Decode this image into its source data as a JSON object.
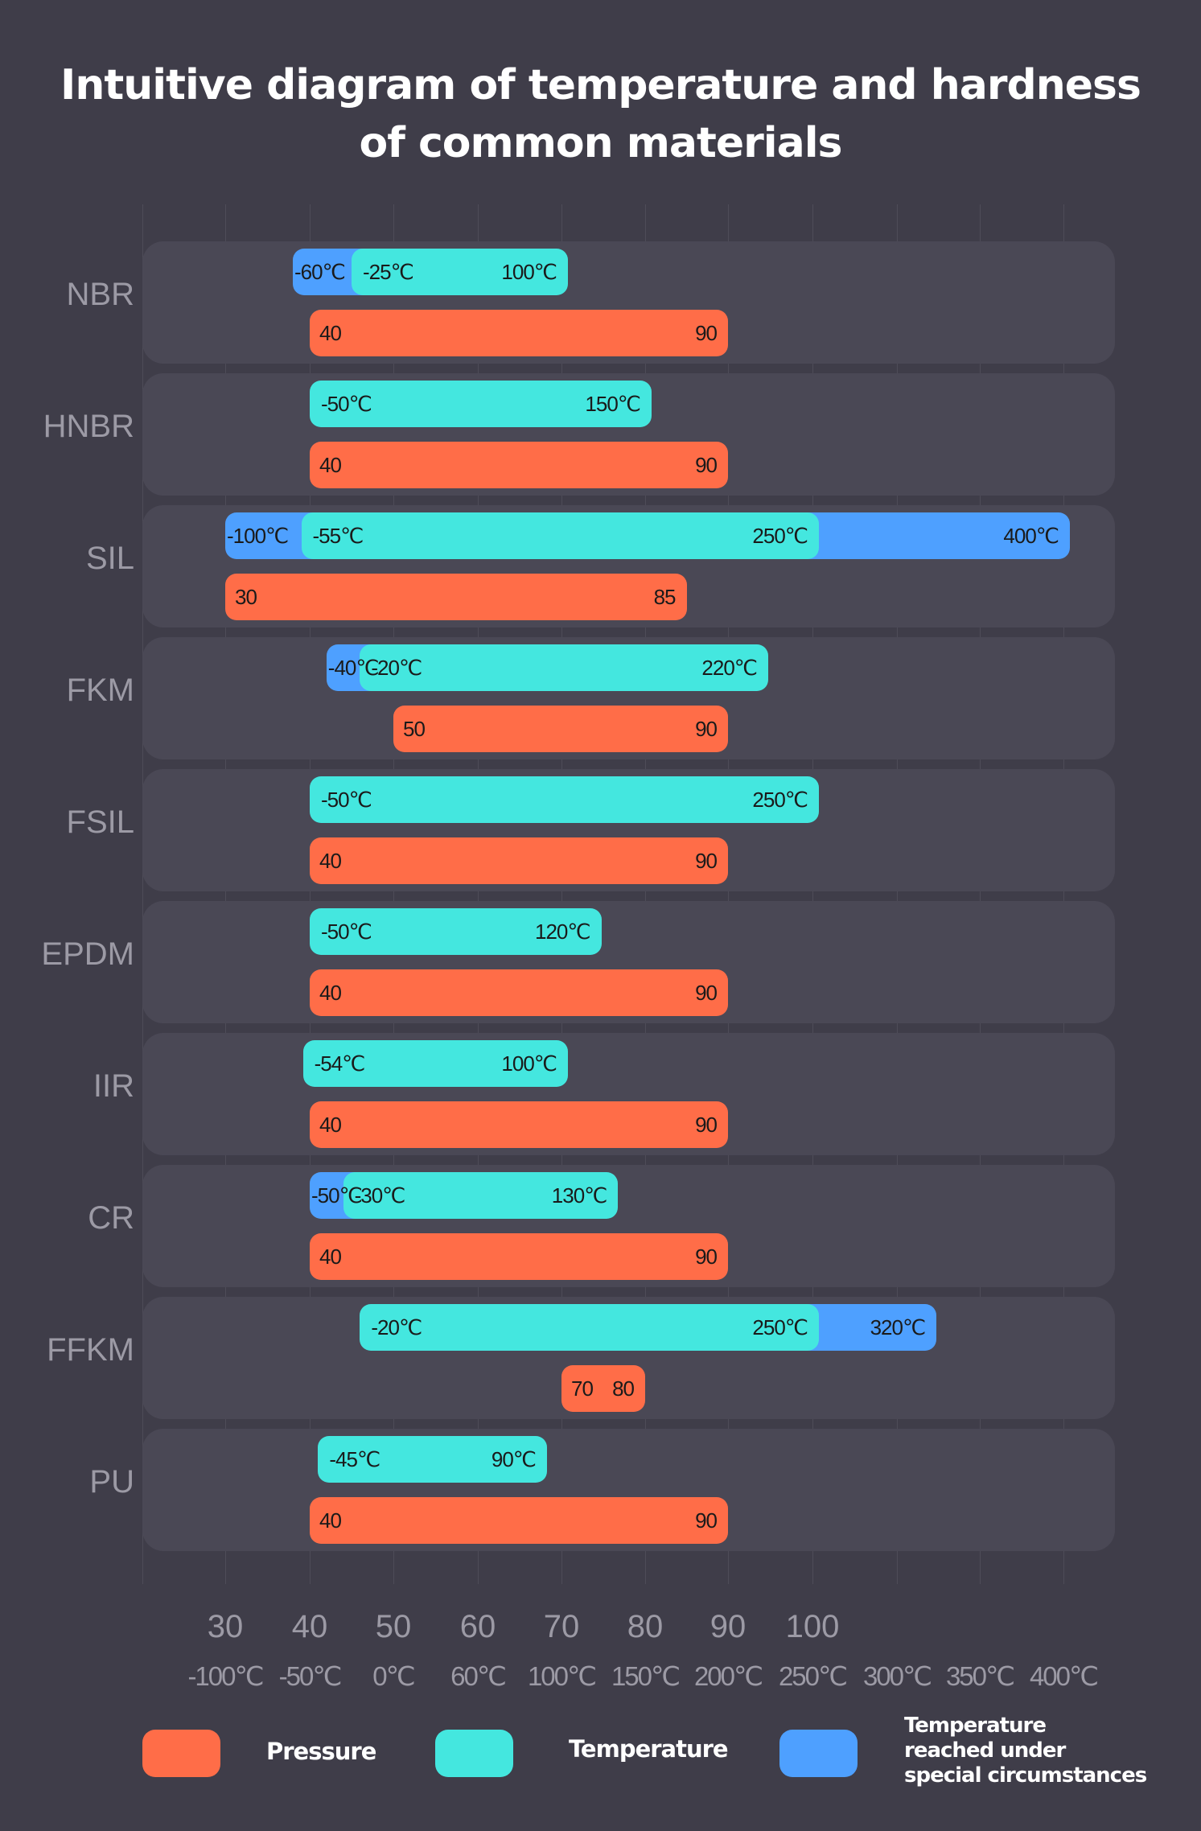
{
  "title_line1": "Intuitive diagram of temperature and hardness",
  "title_line2": "of common materials",
  "colors": {
    "pressure": "#ff6d48",
    "temperature": "#44e7df",
    "special": "#4ea0ff",
    "background": "#3f3d49",
    "panel": "#4a4855"
  },
  "chart_data": {
    "type": "bar",
    "subtype": "range-bar",
    "title": "Intuitive diagram of temperature and hardness of common materials",
    "pressure_axis": {
      "ticks": [
        30,
        40,
        50,
        60,
        70,
        80,
        90,
        100
      ],
      "labels": [
        "30",
        "40",
        "50",
        "60",
        "70",
        "80",
        "90",
        "100"
      ]
    },
    "temperature_axis": {
      "ticks": [
        -100,
        -50,
        0,
        60,
        100,
        150,
        200,
        250,
        300,
        350,
        400
      ],
      "labels": [
        "-100℃",
        "-50℃",
        "0℃",
        "60℃",
        "100℃",
        "150℃",
        "200℃",
        "250℃",
        "300℃",
        "350℃",
        "400℃"
      ]
    },
    "grid": true,
    "legend_position": "bottom",
    "legend": [
      {
        "key": "pressure",
        "label": "Pressure"
      },
      {
        "key": "temperature",
        "label": "Temperature"
      },
      {
        "key": "special",
        "label_lines": [
          "Temperature",
          "reached under",
          "special circumstances"
        ]
      }
    ],
    "categories": [
      "NBR",
      "HNBR",
      "SIL",
      "FKM",
      "FSIL",
      "EPDM",
      "IIR",
      "CR",
      "FFKM",
      "PU"
    ],
    "materials": [
      {
        "name": "NBR",
        "temperature": [
          -25,
          100
        ],
        "temperature_labels": [
          "-25℃",
          "100℃"
        ],
        "special": [
          -60,
          null
        ],
        "special_labels": [
          "-60℃",
          null
        ],
        "pressure": [
          40,
          90
        ],
        "pressure_labels": [
          "40",
          "90"
        ]
      },
      {
        "name": "HNBR",
        "temperature": [
          -50,
          150
        ],
        "temperature_labels": [
          "-50℃",
          "150℃"
        ],
        "special": [
          null,
          null
        ],
        "special_labels": [
          null,
          null
        ],
        "pressure": [
          40,
          90
        ],
        "pressure_labels": [
          "40",
          "90"
        ]
      },
      {
        "name": "SIL",
        "temperature": [
          -55,
          250
        ],
        "temperature_labels": [
          "-55℃",
          "250℃"
        ],
        "special": [
          -100,
          400
        ],
        "special_labels": [
          "-100℃",
          "400℃"
        ],
        "pressure": [
          30,
          85
        ],
        "pressure_labels": [
          "30",
          "85"
        ]
      },
      {
        "name": "FKM",
        "temperature": [
          -20,
          220
        ],
        "temperature_labels": [
          "-20℃",
          "220℃"
        ],
        "special": [
          -40,
          null
        ],
        "special_labels": [
          "-40℃",
          null
        ],
        "pressure": [
          50,
          90
        ],
        "pressure_labels": [
          "50",
          "90"
        ]
      },
      {
        "name": "FSIL",
        "temperature": [
          -50,
          250
        ],
        "temperature_labels": [
          "-50℃",
          "250℃"
        ],
        "special": [
          null,
          null
        ],
        "special_labels": [
          null,
          null
        ],
        "pressure": [
          40,
          90
        ],
        "pressure_labels": [
          "40",
          "90"
        ]
      },
      {
        "name": "EPDM",
        "temperature": [
          -50,
          120
        ],
        "temperature_labels": [
          "-50℃",
          "120℃"
        ],
        "special": [
          null,
          null
        ],
        "special_labels": [
          null,
          null
        ],
        "pressure": [
          40,
          90
        ],
        "pressure_labels": [
          "40",
          "90"
        ]
      },
      {
        "name": "IIR",
        "temperature": [
          -54,
          100
        ],
        "temperature_labels": [
          "-54℃",
          "100℃"
        ],
        "special": [
          null,
          null
        ],
        "special_labels": [
          null,
          null
        ],
        "pressure": [
          40,
          90
        ],
        "pressure_labels": [
          "40",
          "90"
        ]
      },
      {
        "name": "CR",
        "temperature": [
          -30,
          130
        ],
        "temperature_labels": [
          "-30℃",
          "130℃"
        ],
        "special": [
          -50,
          null
        ],
        "special_labels": [
          "-50℃",
          null
        ],
        "pressure": [
          40,
          90
        ],
        "pressure_labels": [
          "40",
          "90"
        ]
      },
      {
        "name": "FFKM",
        "temperature": [
          -20,
          250
        ],
        "temperature_labels": [
          "-20℃",
          "250℃"
        ],
        "special": [
          null,
          320
        ],
        "special_labels": [
          null,
          "320℃"
        ],
        "pressure": [
          70,
          80
        ],
        "pressure_labels": [
          "70",
          "80"
        ]
      },
      {
        "name": "PU",
        "temperature": [
          -45,
          90
        ],
        "temperature_labels": [
          "-45℃",
          "90℃"
        ],
        "special": [
          null,
          null
        ],
        "special_labels": [
          null,
          null
        ],
        "pressure": [
          40,
          90
        ],
        "pressure_labels": [
          "40",
          "90"
        ]
      }
    ]
  }
}
